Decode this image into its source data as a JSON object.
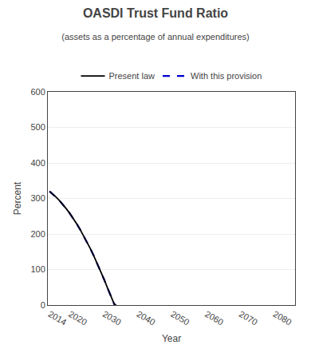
{
  "chart_data": {
    "type": "line",
    "title": "OASDI Trust Fund Ratio",
    "subtitle": "(assets as a percentage of annual expenditures)",
    "xlabel": "Year",
    "ylabel": "Percent",
    "x": [
      2014,
      2015,
      2016,
      2017,
      2018,
      2019,
      2020,
      2021,
      2022,
      2023,
      2024,
      2025,
      2026,
      2027,
      2028,
      2029,
      2030,
      2031,
      2032,
      2033,
      2033.5
    ],
    "series": [
      {
        "name": "Present law",
        "color": "#000000",
        "line_style": "solid",
        "values": [
          320,
          312,
          303,
          293,
          282,
          270,
          257,
          243,
          228,
          212,
          195,
          177,
          158,
          138,
          117,
          95,
          72,
          48,
          23,
          2,
          0
        ]
      },
      {
        "name": "With this provision",
        "color": "#0000cc",
        "line_style": "dash",
        "values": [
          320,
          312,
          303,
          293,
          282,
          270,
          257,
          243,
          228,
          212,
          195,
          177,
          158,
          138,
          117,
          95,
          72,
          48,
          23,
          2,
          0
        ]
      }
    ],
    "xlim": [
      2013.5,
      2086
    ],
    "xticks": [
      2014,
      2020,
      2030,
      2040,
      2050,
      2060,
      2070,
      2080
    ],
    "ylim": [
      0,
      600
    ],
    "yticks": [
      0,
      100,
      200,
      300,
      400,
      500,
      600
    ],
    "grid": "y",
    "legend": "top"
  }
}
